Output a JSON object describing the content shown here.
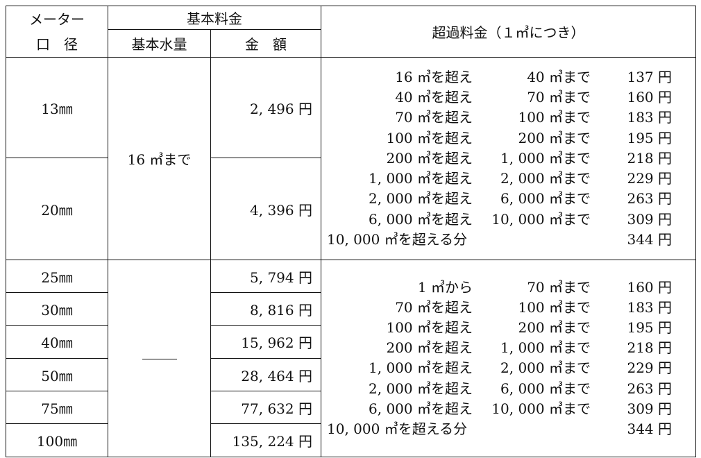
{
  "header": {
    "meter_diameter": [
      "メーター",
      "口　径"
    ],
    "basic_fee": "基本料金",
    "basic_volume": "基本水量",
    "amount": "金　額",
    "excess_fee": "超過料金（１㎥につき）"
  },
  "group1": {
    "basic_volume": "16 ㎥まで",
    "rows": [
      {
        "diameter": "13㎜",
        "amount": "2, 496 円"
      },
      {
        "diameter": "20㎜",
        "amount": "4, 396 円"
      }
    ],
    "tiers": [
      {
        "from": "16 ㎥を超え",
        "to": "40 ㎥まで",
        "price": "137 円"
      },
      {
        "from": "40 ㎥を超え",
        "to": "70 ㎥まで",
        "price": "160 円"
      },
      {
        "from": "70 ㎥を超え",
        "to": "100 ㎥まで",
        "price": "183 円"
      },
      {
        "from": "100 ㎥を超え",
        "to": "200 ㎥まで",
        "price": "195 円"
      },
      {
        "from": "200 ㎥を超え",
        "to": "1, 000 ㎥まで",
        "price": "218 円"
      },
      {
        "from": "1, 000 ㎥を超え",
        "to": "2, 000 ㎥まで",
        "price": "229 円"
      },
      {
        "from": "2, 000 ㎥を超え",
        "to": "6, 000 ㎥まで",
        "price": "263 円"
      },
      {
        "from": "6, 000 ㎥を超え",
        "to": "10, 000 ㎥まで",
        "price": "309 円"
      }
    ],
    "last_tier": {
      "label": "10, 000 ㎥を超える分",
      "price": "344 円"
    }
  },
  "group2": {
    "basic_volume": "——",
    "rows": [
      {
        "diameter": "25㎜",
        "amount": "5, 794 円"
      },
      {
        "diameter": "30㎜",
        "amount": "8, 816 円"
      },
      {
        "diameter": "40㎜",
        "amount": "15, 962 円"
      },
      {
        "diameter": "50㎜",
        "amount": "28, 464 円"
      },
      {
        "diameter": "75㎜",
        "amount": "77, 632 円"
      },
      {
        "diameter": "100㎜",
        "amount": "135, 224 円"
      }
    ],
    "tiers": [
      {
        "from": "1 ㎥から",
        "to": "70 ㎥まで",
        "price": "160 円"
      },
      {
        "from": "70 ㎥を超え",
        "to": "100 ㎥まで",
        "price": "183 円"
      },
      {
        "from": "100 ㎥を超え",
        "to": "200 ㎥まで",
        "price": "195 円"
      },
      {
        "from": "200 ㎥を超え",
        "to": "1, 000 ㎥まで",
        "price": "218 円"
      },
      {
        "from": "1, 000 ㎥を超え",
        "to": "2, 000 ㎥まで",
        "price": "229 円"
      },
      {
        "from": "2, 000 ㎥を超え",
        "to": "6, 000 ㎥まで",
        "price": "263 円"
      },
      {
        "from": "6, 000 ㎥を超え",
        "to": "10, 000 ㎥まで",
        "price": "309 円"
      }
    ],
    "last_tier": {
      "label": "10, 000 ㎥を超える分",
      "price": "344 円"
    }
  }
}
